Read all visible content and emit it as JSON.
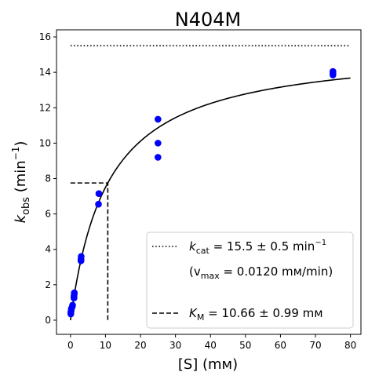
{
  "chart_data": {
    "type": "scatter",
    "title": "N404M",
    "xlabel": "[S] (mм)",
    "ylabel": {
      "base": "k",
      "sub": "obs",
      "unit_open": " (min",
      "sup": "−1",
      "unit_close": ")"
    },
    "xlim": [
      -4,
      83
    ],
    "ylim": [
      -0.8,
      16.4
    ],
    "xticks": [
      0,
      10,
      20,
      30,
      40,
      50,
      60,
      70,
      80
    ],
    "yticks": [
      0,
      2,
      4,
      6,
      8,
      10,
      12,
      14,
      16
    ],
    "grid": false,
    "legend_position": "lower-right",
    "colors": {
      "points": "#0000ff",
      "lines": "#000000"
    },
    "points": {
      "x": [
        0.1,
        0.1,
        0.2,
        0.25,
        0.5,
        0.6,
        1.0,
        1.0,
        1.05,
        1.1,
        3.0,
        3.0,
        3.05,
        8.0,
        8.1,
        25.0,
        25.0,
        25.0,
        75.0,
        75.0,
        75.0
      ],
      "y": [
        0.35,
        0.45,
        0.55,
        0.65,
        0.75,
        0.85,
        1.25,
        1.35,
        1.45,
        1.55,
        3.35,
        3.45,
        3.6,
        6.55,
        7.15,
        9.2,
        10.0,
        11.35,
        13.85,
        13.95,
        14.05
      ]
    },
    "fit": {
      "kcat": 15.5,
      "km": 10.66,
      "x_range": [
        0,
        80
      ]
    },
    "kcat_line": {
      "y": 15.5,
      "x_range": [
        0,
        80
      ]
    },
    "km_marker": {
      "x": 10.66,
      "y": 7.75
    },
    "legend": [
      {
        "style": "dotted",
        "label": {
          "base": "k",
          "sub": "cat",
          "text": " = 15.5 ± 0.5 min",
          "sup": "−1"
        }
      },
      {
        "style": "none",
        "label": {
          "text": "(v",
          "sub": "max",
          "tail": " = 0.0120 mм/min)"
        }
      },
      {
        "style": "dashed",
        "label": {
          "base": "K",
          "sub": "M",
          "text": " = 10.66 ± 0.99 mм"
        }
      }
    ]
  }
}
